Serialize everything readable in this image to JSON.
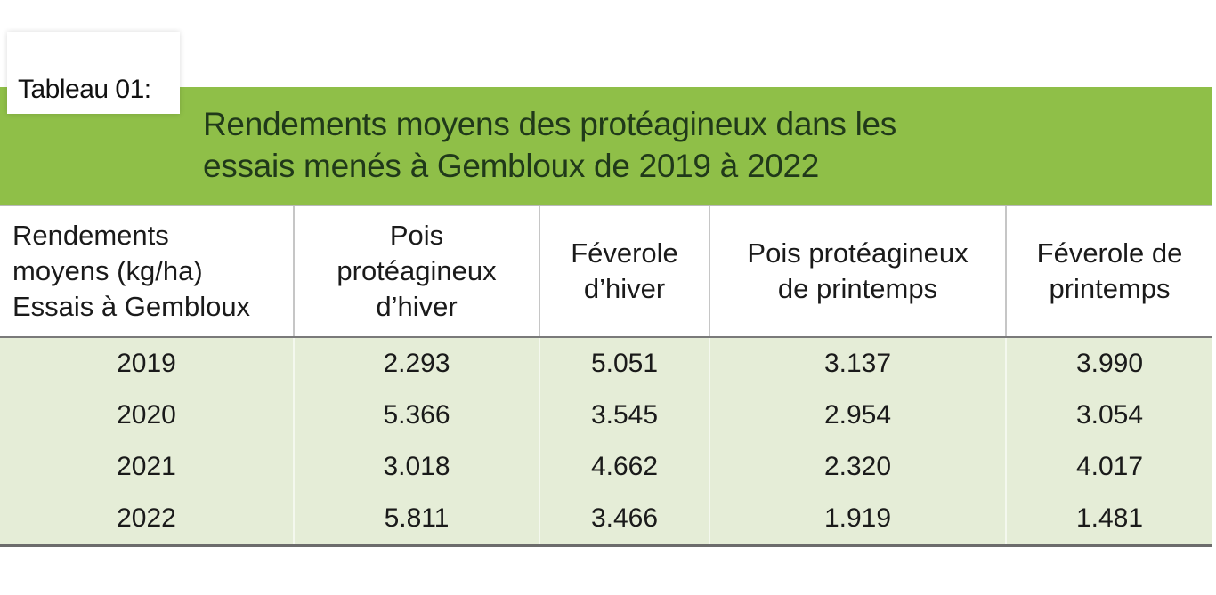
{
  "tag_label": "Tableau 01:",
  "title_lines": [
    "Rendements moyens des protéagineux dans les",
    "essais menés à Gembloux de 2019 à 2022"
  ],
  "header_lines": [
    [
      "Rendements",
      "moyens (kg/ha)",
      "Essais à Gembloux"
    ],
    [
      "Pois",
      "protéagineux",
      "d’hiver"
    ],
    [
      "Féverole",
      "d’hiver"
    ],
    [
      "Pois protéagineux",
      "de printemps"
    ],
    [
      "Féverole de",
      "printemps"
    ]
  ],
  "rows": [
    [
      "2019",
      "2.293",
      "5.051",
      "3.137",
      "3.990"
    ],
    [
      "2020",
      "5.366",
      "3.545",
      "2.954",
      "3.054"
    ],
    [
      "2021",
      "3.018",
      "4.662",
      "2.320",
      "4.017"
    ],
    [
      "2022",
      "5.811",
      "3.466",
      "1.919",
      "1.481"
    ]
  ],
  "colors": {
    "title_band": "#8fbf48",
    "title_text": "#20391a",
    "row_background": "#e5edd7"
  }
}
